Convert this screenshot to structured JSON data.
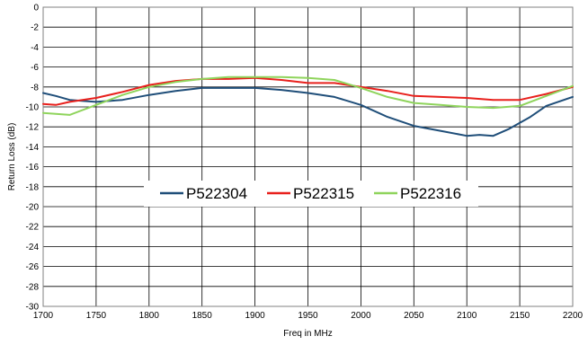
{
  "chart_data": {
    "type": "line",
    "title": "",
    "xlabel": "Freq in MHz",
    "ylabel": "Return Loss (dB)",
    "xlim": [
      1700,
      2200
    ],
    "ylim": [
      -30,
      0
    ],
    "x_ticks": [
      1700,
      1750,
      1800,
      1850,
      1900,
      1950,
      2000,
      2050,
      2100,
      2150,
      2200
    ],
    "y_ticks": [
      0,
      -2,
      -4,
      -6,
      -8,
      -10,
      -12,
      -14,
      -16,
      -18,
      -20,
      -22,
      -24,
      -26,
      -28,
      -30
    ],
    "grid": true,
    "legend_position": "center",
    "series": [
      {
        "name": "P522304",
        "color": "#1f4e79",
        "x": [
          1700,
          1712,
          1725,
          1750,
          1775,
          1800,
          1825,
          1850,
          1875,
          1900,
          1925,
          1950,
          1975,
          2000,
          2025,
          2050,
          2075,
          2100,
          2112,
          2125,
          2140,
          2160,
          2175,
          2200
        ],
        "y": [
          -8.6,
          -8.9,
          -9.3,
          -9.5,
          -9.3,
          -8.8,
          -8.4,
          -8.1,
          -8.1,
          -8.1,
          -8.3,
          -8.6,
          -9.0,
          -9.8,
          -11.0,
          -11.9,
          -12.4,
          -12.9,
          -12.8,
          -12.9,
          -12.2,
          -11.0,
          -9.9,
          -9.0
        ]
      },
      {
        "name": "P522315",
        "color": "#e8201c",
        "x": [
          1700,
          1712,
          1725,
          1750,
          1775,
          1800,
          1825,
          1850,
          1875,
          1900,
          1925,
          1950,
          1975,
          2000,
          2025,
          2050,
          2075,
          2100,
          2125,
          2150,
          2175,
          2200
        ],
        "y": [
          -9.7,
          -9.8,
          -9.5,
          -9.1,
          -8.5,
          -7.8,
          -7.4,
          -7.2,
          -7.2,
          -7.1,
          -7.3,
          -7.6,
          -7.6,
          -8.0,
          -8.4,
          -8.9,
          -9.0,
          -9.1,
          -9.3,
          -9.3,
          -8.7,
          -8.0
        ]
      },
      {
        "name": "P522316",
        "color": "#8fd45c",
        "x": [
          1700,
          1712,
          1725,
          1750,
          1775,
          1800,
          1825,
          1850,
          1875,
          1900,
          1925,
          1950,
          1975,
          2000,
          2025,
          2050,
          2075,
          2100,
          2125,
          2150,
          2175,
          2200
        ],
        "y": [
          -10.6,
          -10.7,
          -10.8,
          -9.8,
          -8.8,
          -8.0,
          -7.5,
          -7.2,
          -7.0,
          -7.0,
          -7.0,
          -7.1,
          -7.3,
          -8.1,
          -9.0,
          -9.6,
          -9.8,
          -10.0,
          -10.1,
          -9.9,
          -8.9,
          -7.9
        ]
      }
    ]
  }
}
